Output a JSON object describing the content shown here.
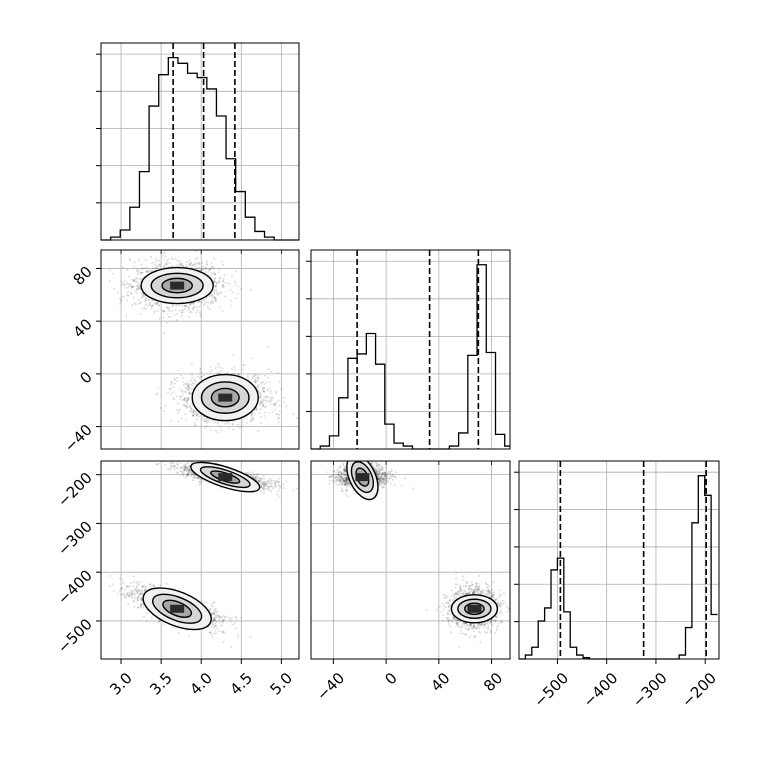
{
  "chart_data": {
    "type": "corner",
    "parameters": [
      {
        "ticks": [
          3.0,
          3.5,
          4.0,
          4.5,
          5.0
        ],
        "tick_labels": [
          "3.0",
          "3.5",
          "4.0",
          "4.5",
          "5.0"
        ],
        "range": [
          2.75,
          5.22
        ],
        "quantiles": [
          3.65,
          4.03,
          4.42
        ]
      },
      {
        "ticks": [
          -40,
          0,
          40,
          80
        ],
        "tick_labels": [
          "−40",
          "0",
          "40",
          "80"
        ],
        "range": [
          -57,
          94
        ],
        "quantiles": [
          -22,
          33,
          70
        ]
      },
      {
        "ticks": [
          -500,
          -400,
          -300,
          -200
        ],
        "tick_labels": [
          "−500",
          "−400",
          "−300",
          "−200"
        ],
        "range": [
          -578,
          -172
        ],
        "quantiles": [
          -494,
          -325,
          -198
        ]
      }
    ],
    "histograms": [
      {
        "param": 0,
        "bin_edges": [
          2.75,
          2.87,
          2.99,
          3.11,
          3.23,
          3.35,
          3.47,
          3.59,
          3.71,
          3.83,
          3.95,
          4.07,
          4.19,
          4.31,
          4.43,
          4.55,
          4.67,
          4.79,
          4.91,
          5.03,
          5.15,
          5.22
        ],
        "counts": [
          0,
          2,
          7,
          23,
          48,
          94,
          116,
          128,
          124,
          117,
          114,
          106,
          87,
          57,
          34,
          16,
          6,
          2,
          0,
          0,
          0
        ]
      },
      {
        "param": 1,
        "bin_edges": [
          -57,
          -50,
          -43,
          -36,
          -29,
          -22,
          -15,
          -8,
          -1,
          6,
          13,
          20,
          27,
          34,
          41,
          48,
          55,
          62,
          69,
          76,
          83,
          90,
          94
        ],
        "counts": [
          0,
          2,
          9,
          35,
          62,
          65,
          79,
          58,
          17,
          4,
          2,
          0,
          0,
          0,
          0,
          2,
          11,
          64,
          126,
          66,
          10,
          2
        ]
      },
      {
        "param": 2,
        "bin_edges": [
          -578,
          -565,
          -552,
          -539,
          -526,
          -513,
          -500,
          -487,
          -474,
          -461,
          -448,
          -435,
          -422,
          -409,
          -396,
          -383,
          -370,
          -357,
          -344,
          -331,
          -318,
          -305,
          -292,
          -279,
          -266,
          -253,
          -240,
          -227,
          -214,
          -201,
          -188,
          -175
        ],
        "counts": [
          0,
          3,
          9,
          29,
          39,
          68,
          77,
          36,
          9,
          3,
          1,
          0,
          0,
          0,
          0,
          0,
          0,
          0,
          0,
          0,
          0,
          0,
          0,
          0,
          0,
          3,
          24,
          104,
          140,
          125,
          34
        ]
      }
    ],
    "modes": [
      {
        "p0": 3.7,
        "p1": 67,
        "p2": -475,
        "weight": 0.5
      },
      {
        "p0": 4.3,
        "p1": -18,
        "p2": -205,
        "weight": 0.5
      }
    ],
    "xlabel": "",
    "ylabel": "",
    "title": "",
    "grid": true
  }
}
